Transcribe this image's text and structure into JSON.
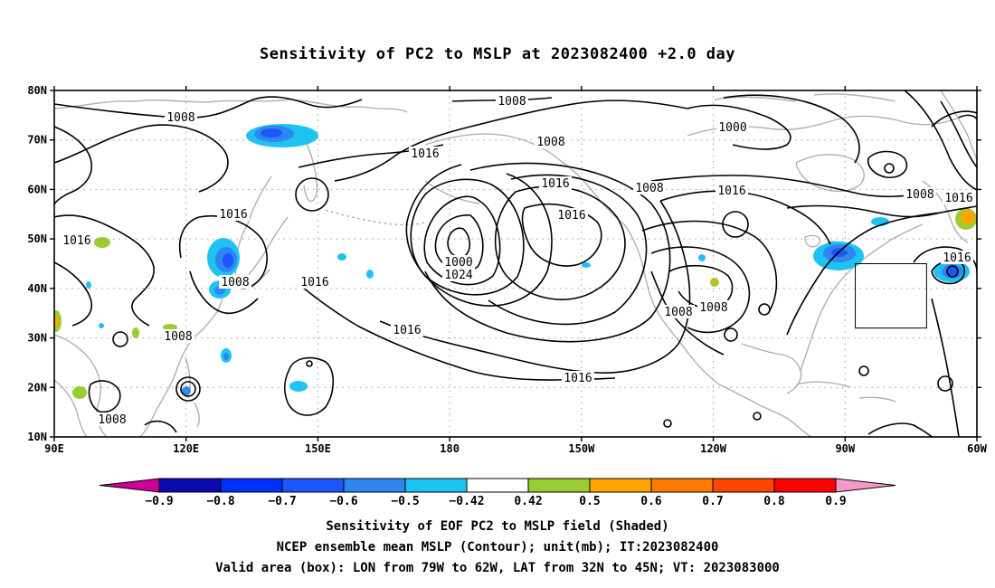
{
  "title": "Sensitivity of PC2 to MSLP at 2023082400 +2.0 day",
  "map": {
    "lat_range": [
      10,
      80
    ],
    "lon_range": [
      90,
      310
    ],
    "lat_ticks": [
      "10N",
      "20N",
      "30N",
      "40N",
      "50N",
      "60N",
      "70N",
      "80N"
    ],
    "lon_ticks": [
      "90E",
      "120E",
      "150E",
      "180",
      "150W",
      "120W",
      "90W",
      "60W"
    ],
    "gridlines": "dotted",
    "contour_labels": [
      "1008",
      "1016",
      "1016",
      "1008",
      "1016",
      "1000",
      "1016",
      "1008",
      "1016",
      "1016",
      "1024",
      "1008",
      "1016",
      "1008",
      "1000",
      "1008",
      "1016",
      "1016",
      "1008",
      "1016",
      "1008",
      "1008",
      "1016",
      "1008"
    ],
    "valid_box": {
      "lon": [
        -79,
        -62
      ],
      "lat": [
        32,
        45
      ]
    }
  },
  "colorbar": {
    "ticks": [
      "−0.9",
      "−0.8",
      "−0.7",
      "−0.6",
      "−0.5",
      "−0.42",
      "0.42",
      "0.5",
      "0.6",
      "0.7",
      "0.8",
      "0.9"
    ],
    "colors": [
      "#cc0099",
      "#0a0ab0",
      "#0030ff",
      "#1d55ff",
      "#2e86f0",
      "#1ec3f5",
      "#ffffff",
      "#9acd32",
      "#ffa500",
      "#ff7a00",
      "#ff4500",
      "#ff0000",
      "#f49ac8"
    ]
  },
  "captions": {
    "line1": "Sensitivity of EOF PC2 to MSLP field (Shaded)",
    "line2": "NCEP ensemble mean MSLP (Contour); unit(mb); IT:2023082400",
    "line3": "Valid area (box): LON from 79W to 62W, LAT from 32N to 45N; VT: 2023083000"
  }
}
